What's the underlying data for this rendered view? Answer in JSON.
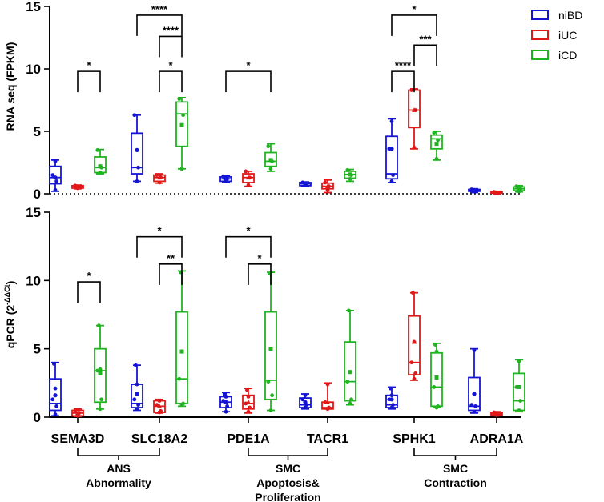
{
  "colors": {
    "niBD": "#1414d4",
    "iUC": "#e01818",
    "iCD": "#1fb41f"
  },
  "legend": [
    {
      "key": "niBD",
      "label": "niBD"
    },
    {
      "key": "iUC",
      "label": "iUC"
    },
    {
      "key": "iCD",
      "label": "iCD"
    }
  ],
  "chart_data": [
    {
      "type": "box",
      "id": "rna",
      "ylabel": "RNA seq (FPKM)",
      "ylim": [
        0,
        15
      ],
      "yticks": [
        0,
        5,
        10,
        15
      ],
      "zero_dotted": true,
      "categories": [
        "SEMA3D",
        "SLC18A2",
        "PDE1A",
        "TACR1",
        "SPHK1",
        "ADRA1A"
      ],
      "series_order": [
        "niBD",
        "iUC",
        "iCD"
      ],
      "boxes": [
        {
          "gene": "SEMA3D",
          "series": "niBD",
          "min": 0.2,
          "q1": 0.8,
          "median": 1.3,
          "q3": 2.2,
          "max": 2.7,
          "points": [
            0.3,
            1.0,
            1.5,
            2.6
          ],
          "mean": 1.3,
          "mean_marker": "circle"
        },
        {
          "gene": "SEMA3D",
          "series": "iUC",
          "min": 0.4,
          "q1": 0.45,
          "median": 0.55,
          "q3": 0.65,
          "max": 0.7,
          "points": [
            0.45,
            0.55,
            0.65
          ],
          "mean": 0.55,
          "mean_marker": "triangle"
        },
        {
          "gene": "SEMA3D",
          "series": "iCD",
          "min": 1.6,
          "q1": 1.7,
          "median": 2.1,
          "q3": 2.95,
          "max": 3.55,
          "points": [
            1.7,
            2.1,
            3.5
          ],
          "mean": 2.2,
          "mean_marker": "square"
        },
        {
          "gene": "SLC18A2",
          "series": "niBD",
          "min": 1.0,
          "q1": 1.6,
          "median": 2.1,
          "q3": 4.85,
          "max": 6.3,
          "points": [
            1.0,
            2.1,
            6.3
          ],
          "mean": 3.5,
          "mean_marker": "circle"
        },
        {
          "gene": "SLC18A2",
          "series": "iUC",
          "min": 0.85,
          "q1": 1.0,
          "median": 1.3,
          "q3": 1.5,
          "max": 1.6,
          "points": [
            0.9,
            1.3,
            1.5
          ],
          "mean": 1.3,
          "mean_marker": "triangle"
        },
        {
          "gene": "SLC18A2",
          "series": "iCD",
          "min": 2.0,
          "q1": 3.8,
          "median": 6.4,
          "q3": 7.35,
          "max": 7.7,
          "points": [
            2.0,
            6.3,
            7.6
          ],
          "mean": 5.5,
          "mean_marker": "square"
        },
        {
          "gene": "PDE1A",
          "series": "niBD",
          "min": 0.9,
          "q1": 1.0,
          "median": 1.2,
          "q3": 1.35,
          "max": 1.45,
          "points": [
            1.0,
            1.2,
            1.4
          ],
          "mean": 1.2,
          "mean_marker": "circle"
        },
        {
          "gene": "PDE1A",
          "series": "iUC",
          "min": 0.6,
          "q1": 0.9,
          "median": 1.3,
          "q3": 1.6,
          "max": 1.8,
          "points": [
            0.7,
            1.3,
            1.8
          ],
          "mean": 1.3,
          "mean_marker": "triangle"
        },
        {
          "gene": "PDE1A",
          "series": "iCD",
          "min": 1.8,
          "q1": 2.2,
          "median": 2.6,
          "q3": 3.3,
          "max": 4.0,
          "points": [
            2.0,
            2.6,
            3.8
          ],
          "mean": 2.7,
          "mean_marker": "square"
        },
        {
          "gene": "TACR1",
          "series": "niBD",
          "min": 0.6,
          "q1": 0.65,
          "median": 0.8,
          "q3": 0.9,
          "max": 0.95,
          "points": [
            0.7,
            0.8,
            0.9
          ],
          "mean": 0.8,
          "mean_marker": "circle"
        },
        {
          "gene": "TACR1",
          "series": "iUC",
          "min": 0.1,
          "q1": 0.4,
          "median": 0.6,
          "q3": 0.85,
          "max": 1.1,
          "points": [
            0.3,
            0.6,
            0.9
          ],
          "mean": 0.6,
          "mean_marker": "triangle"
        },
        {
          "gene": "TACR1",
          "series": "iCD",
          "min": 1.0,
          "q1": 1.25,
          "median": 1.55,
          "q3": 1.8,
          "max": 1.95,
          "points": [
            1.2,
            1.5,
            1.9
          ],
          "mean": 1.55,
          "mean_marker": "square"
        },
        {
          "gene": "SPHK1",
          "series": "niBD",
          "min": 0.9,
          "q1": 1.2,
          "median": 1.6,
          "q3": 4.6,
          "max": 6.0,
          "points": [
            1.0,
            1.5,
            3.6,
            5.8
          ],
          "mean": 3.6,
          "mean_marker": "circle"
        },
        {
          "gene": "SPHK1",
          "series": "iUC",
          "min": 3.6,
          "q1": 5.3,
          "median": 6.7,
          "q3": 8.3,
          "max": 8.4,
          "points": [
            3.7,
            6.7,
            8.3
          ],
          "mean": 6.7,
          "mean_marker": "triangle"
        },
        {
          "gene": "SPHK1",
          "series": "iCD",
          "min": 2.7,
          "q1": 3.6,
          "median": 4.4,
          "q3": 4.7,
          "max": 5.0,
          "points": [
            2.8,
            4.3,
            4.9
          ],
          "mean": 4.0,
          "mean_marker": "square"
        },
        {
          "gene": "ADRA1A",
          "series": "niBD",
          "min": 0.1,
          "q1": 0.2,
          "median": 0.3,
          "q3": 0.35,
          "max": 0.4,
          "points": [
            0.2,
            0.3,
            0.35
          ],
          "mean": 0.3,
          "mean_marker": "circle"
        },
        {
          "gene": "ADRA1A",
          "series": "iUC",
          "min": 0.0,
          "q1": 0.05,
          "median": 0.1,
          "q3": 0.15,
          "max": 0.2,
          "points": [
            0.05,
            0.1,
            0.15
          ],
          "mean": 0.1,
          "mean_marker": "triangle"
        },
        {
          "gene": "ADRA1A",
          "series": "iCD",
          "min": 0.15,
          "q1": 0.25,
          "median": 0.4,
          "q3": 0.55,
          "max": 0.65,
          "points": [
            0.2,
            0.4,
            0.6
          ],
          "mean": 0.4,
          "mean_marker": "square"
        }
      ],
      "significance": [
        {
          "gene": "SEMA3D",
          "from": "iUC",
          "to": "iCD",
          "y": 9.8,
          "label": "*"
        },
        {
          "gene": "SLC18A2",
          "from": "iUC",
          "to": "iCD",
          "y": 9.8,
          "label": "*"
        },
        {
          "gene": "SLC18A2",
          "from": "iUC",
          "to": "iCD",
          "y": 12.6,
          "label": "****"
        },
        {
          "gene": "SLC18A2",
          "from": "niBD",
          "to": "iCD",
          "y": 14.3,
          "label": "****"
        },
        {
          "gene": "PDE1A",
          "from": "niBD",
          "to": "iCD",
          "y": 9.8,
          "label": "*"
        },
        {
          "gene": "SPHK1",
          "from": "niBD",
          "to": "iUC",
          "y": 9.8,
          "label": "****"
        },
        {
          "gene": "SPHK1",
          "from": "iUC",
          "to": "iCD",
          "y": 11.9,
          "label": "***"
        },
        {
          "gene": "SPHK1",
          "from": "niBD",
          "to": "iCD",
          "y": 14.3,
          "label": "*"
        }
      ]
    },
    {
      "type": "box",
      "id": "qpcr",
      "ylabel": "qPCR (2",
      "ylabel_sup": "-ΔΔCt",
      "ylabel_close": ")",
      "ylim": [
        0,
        15
      ],
      "yticks": [
        0,
        5,
        10,
        15
      ],
      "zero_dotted": false,
      "categories": [
        "SEMA3D",
        "SLC18A2",
        "PDE1A",
        "TACR1",
        "SPHK1",
        "ADRA1A"
      ],
      "series_order": [
        "niBD",
        "iUC",
        "iCD"
      ],
      "boxes": [
        {
          "gene": "SEMA3D",
          "series": "niBD",
          "min": 0.1,
          "q1": 0.5,
          "median": 1.0,
          "q3": 2.8,
          "max": 4.0,
          "points": [
            0.2,
            0.8,
            1.3,
            2.1,
            3.9
          ],
          "mean": 1.6,
          "mean_marker": "circle"
        },
        {
          "gene": "SEMA3D",
          "series": "iUC",
          "min": 0.05,
          "q1": 0.1,
          "median": 0.3,
          "q3": 0.5,
          "max": 0.6,
          "points": [
            0.1,
            0.3,
            0.5
          ],
          "mean": 0.3,
          "mean_marker": "triangle"
        },
        {
          "gene": "SEMA3D",
          "series": "iCD",
          "min": 0.6,
          "q1": 1.1,
          "median": 3.4,
          "q3": 5.0,
          "max": 6.7,
          "points": [
            0.6,
            1.3,
            3.4,
            3.5,
            6.7
          ],
          "mean": 3.2,
          "mean_marker": "square"
        },
        {
          "gene": "SLC18A2",
          "series": "niBD",
          "min": 0.5,
          "q1": 0.7,
          "median": 1.0,
          "q3": 2.4,
          "max": 3.8,
          "points": [
            0.6,
            0.9,
            1.3,
            2.4,
            3.8
          ],
          "mean": 1.7,
          "mean_marker": "circle"
        },
        {
          "gene": "SLC18A2",
          "series": "iUC",
          "min": 0.3,
          "q1": 0.35,
          "median": 0.8,
          "q3": 1.2,
          "max": 1.3,
          "points": [
            0.35,
            0.45,
            0.9,
            1.2
          ],
          "mean": 0.8,
          "mean_marker": "triangle"
        },
        {
          "gene": "SLC18A2",
          "series": "iCD",
          "min": 0.8,
          "q1": 1.0,
          "median": 2.8,
          "q3": 7.7,
          "max": 10.7,
          "points": [
            0.9,
            1.0,
            2.8,
            4.8,
            10.6
          ],
          "mean": 4.8,
          "mean_marker": "square"
        },
        {
          "gene": "PDE1A",
          "series": "niBD",
          "min": 0.4,
          "q1": 0.7,
          "median": 1.1,
          "q3": 1.5,
          "max": 1.8,
          "points": [
            0.4,
            0.8,
            1.2,
            1.5,
            1.7
          ],
          "mean": 1.1,
          "mean_marker": "circle"
        },
        {
          "gene": "PDE1A",
          "series": "iUC",
          "min": 0.3,
          "q1": 0.6,
          "median": 1.0,
          "q3": 1.6,
          "max": 2.1,
          "points": [
            0.4,
            0.7,
            1.0,
            1.5,
            2.0
          ],
          "mean": 1.1,
          "mean_marker": "triangle"
        },
        {
          "gene": "PDE1A",
          "series": "iCD",
          "min": 0.5,
          "q1": 1.3,
          "median": 2.7,
          "q3": 7.7,
          "max": 10.6,
          "points": [
            0.5,
            1.6,
            2.6,
            5.0,
            10.5
          ],
          "mean": 5.0,
          "mean_marker": "square"
        },
        {
          "gene": "TACR1",
          "series": "niBD",
          "min": 0.6,
          "q1": 0.7,
          "median": 0.9,
          "q3": 1.4,
          "max": 1.7,
          "points": [
            0.7,
            0.9,
            1.3,
            1.6
          ],
          "mean": 1.1,
          "mean_marker": "circle"
        },
        {
          "gene": "TACR1",
          "series": "iUC",
          "min": 0.6,
          "q1": 0.6,
          "median": 0.7,
          "q3": 1.1,
          "max": 2.5,
          "points": [
            0.6,
            0.7,
            1.1,
            2.4
          ],
          "mean": 1.1,
          "mean_marker": "triangle"
        },
        {
          "gene": "TACR1",
          "series": "iCD",
          "min": 0.9,
          "q1": 1.2,
          "median": 2.6,
          "q3": 5.5,
          "max": 7.8,
          "points": [
            1.0,
            1.3,
            2.6,
            3.3,
            7.8
          ],
          "mean": 3.3,
          "mean_marker": "square"
        },
        {
          "gene": "SPHK1",
          "series": "niBD",
          "min": 0.6,
          "q1": 0.7,
          "median": 0.9,
          "q3": 1.6,
          "max": 2.2,
          "points": [
            0.7,
            0.9,
            1.3,
            1.6,
            2.1
          ],
          "mean": 1.3,
          "mean_marker": "circle"
        },
        {
          "gene": "SPHK1",
          "series": "iUC",
          "min": 2.7,
          "q1": 3.1,
          "median": 4.0,
          "q3": 7.4,
          "max": 9.1,
          "points": [
            2.8,
            3.2,
            4.0,
            5.5,
            9.1
          ],
          "mean": 5.5,
          "mean_marker": "triangle"
        },
        {
          "gene": "SPHK1",
          "series": "iCD",
          "min": 0.7,
          "q1": 0.8,
          "median": 2.2,
          "q3": 4.7,
          "max": 5.4,
          "points": [
            0.7,
            0.8,
            2.2,
            4.8,
            5.3
          ],
          "mean": 2.9,
          "mean_marker": "square"
        },
        {
          "gene": "ADRA1A",
          "series": "niBD",
          "min": 0.3,
          "q1": 0.5,
          "median": 0.8,
          "q3": 2.9,
          "max": 5.0,
          "points": [
            0.4,
            0.8,
            0.9,
            4.9
          ],
          "mean": 1.7,
          "mean_marker": "circle"
        },
        {
          "gene": "ADRA1A",
          "series": "iUC",
          "min": 0.1,
          "q1": 0.15,
          "median": 0.25,
          "q3": 0.35,
          "max": 0.4,
          "points": [
            0.15,
            0.25,
            0.35
          ],
          "mean": 0.25,
          "mean_marker": "triangle"
        },
        {
          "gene": "ADRA1A",
          "series": "iCD",
          "min": 0.4,
          "q1": 0.5,
          "median": 1.2,
          "q3": 3.2,
          "max": 4.2,
          "points": [
            0.5,
            1.2,
            2.2,
            4.1
          ],
          "mean": 2.2,
          "mean_marker": "square"
        }
      ],
      "significance": [
        {
          "gene": "SEMA3D",
          "from": "iUC",
          "to": "iCD",
          "y": 9.9,
          "label": "*"
        },
        {
          "gene": "SLC18A2",
          "from": "iUC",
          "to": "iCD",
          "y": 11.2,
          "label": "**"
        },
        {
          "gene": "SLC18A2",
          "from": "niBD",
          "to": "iCD",
          "y": 13.2,
          "label": "*"
        },
        {
          "gene": "PDE1A",
          "from": "iUC",
          "to": "iCD",
          "y": 11.2,
          "label": "*"
        },
        {
          "gene": "PDE1A",
          "from": "niBD",
          "to": "iCD",
          "y": 13.2,
          "label": "*"
        }
      ]
    }
  ],
  "groups": [
    {
      "label_line1": "ANS",
      "label_line2": "Abnormality",
      "label_line3": "",
      "genes": [
        "SEMA3D",
        "SLC18A2"
      ]
    },
    {
      "label_line1": "SMC",
      "label_line2": "Apoptosis&",
      "label_line3": "Proliferation",
      "genes": [
        "PDE1A",
        "TACR1"
      ]
    },
    {
      "label_line1": "SMC",
      "label_line2": "Contraction",
      "label_line3": "",
      "genes": [
        "SPHK1",
        "ADRA1A"
      ]
    }
  ]
}
